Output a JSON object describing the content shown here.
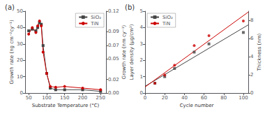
{
  "chart_data": [
    {
      "type": "line",
      "title": "(a)",
      "x_label": "Substrate Temperature (°C)",
      "y_label": "Growth rate (ng cm⁻²cy⁻¹)",
      "y2_label": "Growth rate (nm cy⁻¹)",
      "xlim": [
        40,
        265
      ],
      "xticks": [
        50,
        100,
        150,
        200,
        250
      ],
      "ylim": [
        0,
        50
      ],
      "yticks": [
        0,
        10,
        20,
        30,
        40,
        50
      ],
      "y2lim": [
        0,
        0.12
      ],
      "y2ticks": [
        {
          "value": 0,
          "label": "0.00"
        },
        0.02,
        0.05,
        0.07,
        0.09,
        0.12
      ],
      "grid": false,
      "legend": "upper right",
      "series": [
        {
          "name": "SiO₂",
          "color": "#444444",
          "marker": "square",
          "x": [
            50,
            60,
            70,
            75,
            80,
            85,
            90,
            100,
            110,
            125,
            150,
            200,
            250
          ],
          "values": [
            38,
            39,
            38,
            40,
            43,
            42,
            29,
            12,
            3,
            2,
            2,
            2,
            1
          ]
        },
        {
          "name": "TiN",
          "color": "#cc0000",
          "marker": "circle",
          "x": [
            50,
            60,
            70,
            75,
            80,
            85,
            90,
            100,
            110,
            125,
            150,
            200,
            250
          ],
          "values": [
            36,
            40,
            37,
            41,
            44,
            41,
            25,
            12,
            4,
            3.5,
            4,
            3,
            2
          ]
        }
      ]
    },
    {
      "type": "scatter",
      "title": "(b)",
      "x_label": "Cycle number",
      "y_label": "Layer density (μg/cm²)",
      "y2_label": "Thickness (nm)",
      "xlim": [
        0,
        105
      ],
      "xticks": [
        0,
        20,
        40,
        60,
        80,
        100
      ],
      "ylim": [
        0,
        5
      ],
      "yticks": [
        0,
        1,
        2,
        3,
        4,
        5
      ],
      "y2lim": [
        0,
        9
      ],
      "y2ticks": [
        0,
        2,
        4,
        6,
        8
      ],
      "grid": false,
      "legend": "upper left",
      "series": [
        {
          "type": "line",
          "color": "#444444",
          "x": [
            0,
            105
          ],
          "values": [
            0.4124528,
            4.1639245
          ]
        },
        {
          "type": "line",
          "color": "#cc0000",
          "x": [
            0,
            105
          ],
          "values": [
            0.36868,
            4.945887
          ]
        },
        {
          "name": "SiO₂",
          "color": "#444444",
          "marker": "square",
          "x": [
            10,
            20,
            30,
            50,
            65,
            100
          ],
          "values": [
            0.6,
            1.0,
            1.5,
            2.5,
            3.0,
            3.7
          ]
        },
        {
          "name": "TiN",
          "color": "#cc0000",
          "marker": "circle",
          "x": [
            10,
            20,
            30,
            50,
            65,
            100
          ],
          "values": [
            0.6,
            1.1,
            1.7,
            2.9,
            3.5,
            4.4
          ]
        }
      ]
    }
  ]
}
